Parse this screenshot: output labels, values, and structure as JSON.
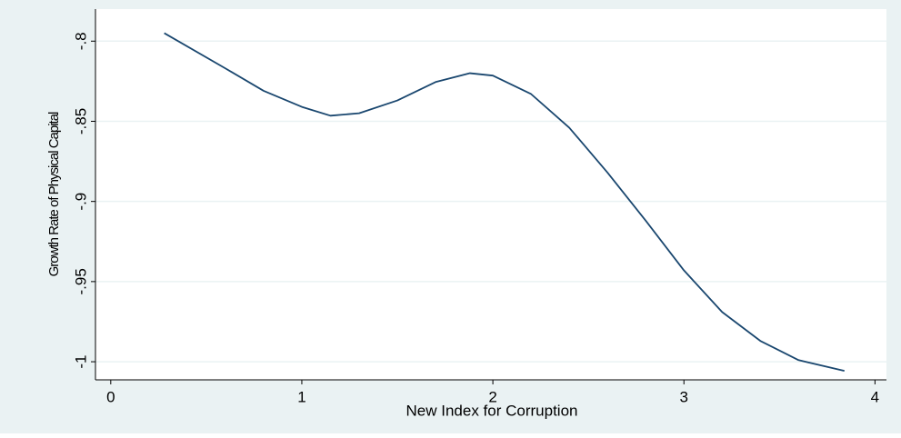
{
  "chart_data": {
    "type": "line",
    "x_label": "New Index for Corruption",
    "y_label": "Growth Rate of Physical Capital",
    "x": [
      0.28,
      0.6,
      0.8,
      1.0,
      1.15,
      1.3,
      1.5,
      1.7,
      1.88,
      2.0,
      2.2,
      2.4,
      2.6,
      2.8,
      3.0,
      3.2,
      3.4,
      3.6,
      3.84
    ],
    "series": [
      {
        "color": "#1a476f",
        "values": [
          -0.795,
          -0.817,
          -0.831,
          -0.841,
          -0.8465,
          -0.845,
          -0.837,
          -0.8255,
          -0.82,
          -0.8215,
          -0.833,
          -0.854,
          -0.882,
          -0.912,
          -0.943,
          -0.969,
          -0.987,
          -0.999,
          -1.0057
        ]
      }
    ],
    "xlim": [
      -0.08,
      4.06
    ],
    "ylim": [
      -1.0113,
      -0.78
    ],
    "xticks": [
      0,
      1,
      2,
      3,
      4
    ],
    "yticks": [
      {
        "value": -0.8,
        "label": "-.8"
      },
      {
        "value": -0.85,
        "label": "-.85"
      },
      {
        "value": -0.9,
        "label": "-.9"
      },
      {
        "value": -0.95,
        "label": "-.95"
      },
      {
        "value": -1,
        "label": "-1"
      }
    ],
    "grid": true
  }
}
